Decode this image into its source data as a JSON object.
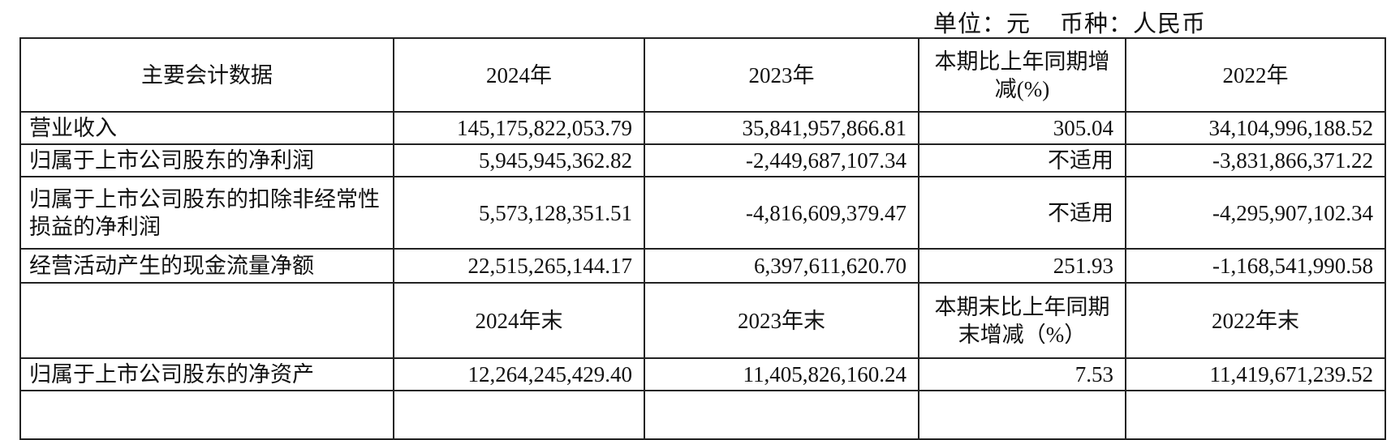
{
  "unit_line": {
    "unit": "单位：元",
    "currency": "币种：人民币"
  },
  "table": {
    "header1": [
      "主要会计数据",
      "2024年",
      "2023年",
      "本期比上年同期增减(%)",
      "2022年"
    ],
    "rows1": [
      [
        "营业收入",
        "145,175,822,053.79",
        "35,841,957,866.81",
        "305.04",
        "34,104,996,188.52"
      ],
      [
        "归属于上市公司股东的净利润",
        "5,945,945,362.82",
        "-2,449,687,107.34",
        "不适用",
        "-3,831,866,371.22"
      ],
      [
        "归属于上市公司股东的扣除非经常性损益的净利润",
        "5,573,128,351.51",
        "-4,816,609,379.47",
        "不适用",
        "-4,295,907,102.34"
      ],
      [
        "经营活动产生的现金流量净额",
        "22,515,265,144.17",
        "6,397,611,620.70",
        "251.93",
        "-1,168,541,990.58"
      ]
    ],
    "header2": [
      "",
      "2024年末",
      "2023年末",
      "本期末比上年同期末增减（%）",
      "2022年末"
    ],
    "rows2": [
      [
        "归属于上市公司股东的净资产",
        "12,264,245,429.40",
        "11,405,826,160.24",
        "7.53",
        "11,419,671,239.52"
      ]
    ]
  }
}
